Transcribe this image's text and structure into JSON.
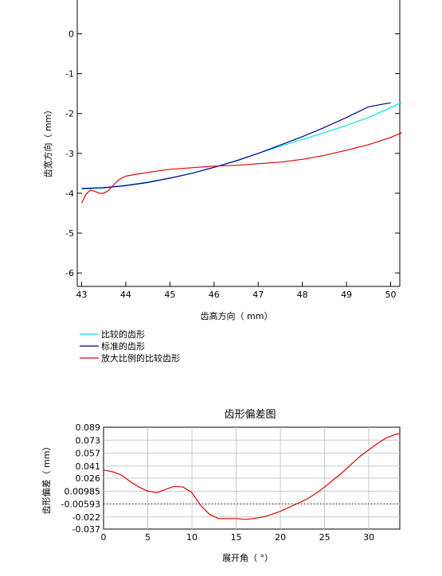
{
  "chart_data": [
    {
      "type": "line",
      "xlabel": "齿高方向（ mm）",
      "ylabel": "齿宽方向（ mm）",
      "xlim": [
        43,
        50.2
      ],
      "ylim": [
        -6.3,
        0.85
      ],
      "xticks": [
        43,
        44,
        45,
        46,
        47,
        48,
        49,
        50
      ],
      "yticks": [
        0,
        -1,
        -2,
        -3,
        -4,
        -5,
        -6
      ],
      "grid": false,
      "legend_position": "bottom-left",
      "series": [
        {
          "name": "比较的齿形",
          "color": "#00e5e5",
          "x": [
            43.0,
            43.5,
            44.0,
            44.5,
            45.0,
            45.5,
            46.0,
            46.5,
            47.0,
            47.5,
            48.0,
            48.5,
            49.0,
            49.5,
            50.0,
            50.25
          ],
          "y": [
            -3.89,
            -3.87,
            -3.8,
            -3.72,
            -3.62,
            -3.5,
            -3.35,
            -3.18,
            -3.0,
            -2.82,
            -2.65,
            -2.48,
            -2.3,
            -2.1,
            -1.85,
            -1.72
          ]
        },
        {
          "name": "标准的齿形",
          "color": "#00008b",
          "x": [
            43.0,
            43.5,
            44.0,
            44.5,
            45.0,
            45.5,
            46.0,
            46.5,
            47.0,
            47.5,
            48.0,
            48.5,
            49.0,
            49.5,
            50.0
          ],
          "y": [
            -3.88,
            -3.86,
            -3.81,
            -3.73,
            -3.62,
            -3.5,
            -3.35,
            -3.19,
            -3.0,
            -2.79,
            -2.58,
            -2.35,
            -2.1,
            -1.83,
            -1.73
          ]
        },
        {
          "name": "放大比例的比较齿形",
          "color": "#e00000",
          "x": [
            43.0,
            43.1,
            43.2,
            43.3,
            43.4,
            43.5,
            43.6,
            43.7,
            43.8,
            43.9,
            44.0,
            44.2,
            44.5,
            44.8,
            45.0,
            45.5,
            46.0,
            46.5,
            47.0,
            47.5,
            48.0,
            48.5,
            49.0,
            49.5,
            50.0,
            50.25
          ],
          "y": [
            -4.25,
            -4.02,
            -3.92,
            -3.95,
            -4.0,
            -4.0,
            -3.94,
            -3.82,
            -3.7,
            -3.62,
            -3.57,
            -3.53,
            -3.48,
            -3.43,
            -3.4,
            -3.36,
            -3.32,
            -3.3,
            -3.26,
            -3.22,
            -3.15,
            -3.05,
            -2.92,
            -2.78,
            -2.6,
            -2.48
          ]
        }
      ]
    },
    {
      "type": "line",
      "title": "齿形偏差图",
      "xlabel": "展开角（ °）",
      "ylabel": "齿形偏差（ mm）",
      "xlim": [
        0,
        33.5
      ],
      "ylim": [
        -0.037,
        0.089
      ],
      "xticks": [
        0,
        5,
        10,
        15,
        20,
        25,
        30
      ],
      "yticks": [
        "0.089",
        "0.073",
        "0.057",
        "0.041",
        "0.026",
        "0.00985",
        "-0.00593",
        "-0.022",
        "-0.037"
      ],
      "grid": true,
      "series": [
        {
          "color": "#e00000",
          "x": [
            0,
            1,
            2,
            3,
            4,
            5,
            6,
            7,
            8,
            9,
            10,
            11,
            12,
            13,
            14,
            15,
            16,
            17,
            18,
            19,
            20,
            21,
            22,
            23,
            24,
            25,
            26,
            27,
            28,
            29,
            30,
            31,
            32,
            33,
            33.5
          ],
          "y": [
            0.036,
            0.034,
            0.03,
            0.022,
            0.015,
            0.01,
            0.008,
            0.012,
            0.016,
            0.015,
            0.008,
            -0.008,
            -0.019,
            -0.024,
            -0.024,
            -0.024,
            -0.025,
            -0.024,
            -0.022,
            -0.019,
            -0.015,
            -0.01,
            -0.005,
            0.0,
            0.007,
            0.015,
            0.024,
            0.033,
            0.043,
            0.053,
            0.061,
            0.069,
            0.076,
            0.08,
            0.081
          ]
        },
        {
          "style": "dotted",
          "color": "#000000",
          "x": [
            0,
            33.5
          ],
          "y": [
            -0.00593,
            -0.00593
          ]
        }
      ]
    }
  ]
}
